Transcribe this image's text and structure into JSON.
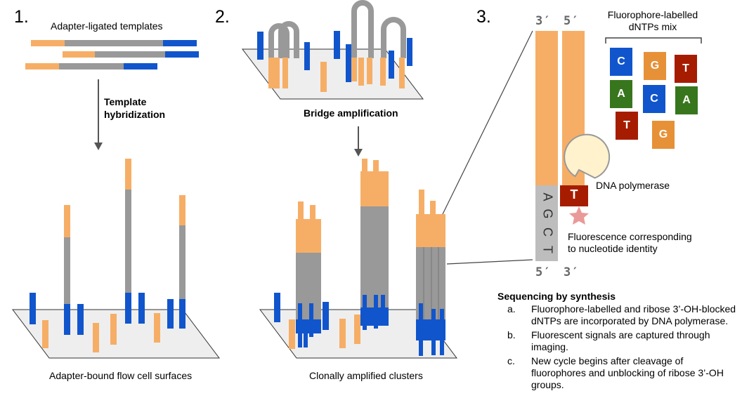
{
  "step_numbers": [
    "1.",
    "2.",
    "3."
  ],
  "panel1": {
    "templates_label": "Adapter-ligated templates",
    "arrow_label_line1": "Template",
    "arrow_label_line2": "hybridization",
    "surface_label": "Adapter-bound flow cell surfaces"
  },
  "panel2": {
    "bridge_label": "Bridge amplification",
    "clusters_label": "Clonally amplified clusters"
  },
  "panel3": {
    "strand_top_left": "3′",
    "strand_top_right": "5′",
    "strand_bottom_left": "5′",
    "strand_bottom_right": "3′",
    "template_bases": [
      "A",
      "G",
      "C",
      "T"
    ],
    "incoming_base": "T",
    "dntps_title_line1": "Fluorophore-labelled",
    "dntps_title_line2": "dNTPs mix",
    "dntps": [
      "C",
      "G",
      "T",
      "A",
      "C",
      "A",
      "T",
      "G"
    ],
    "polymerase_label": "DNA polymerase",
    "fluorescence_line1": "Fluorescence corresponding",
    "fluorescence_line2": "to nucleotide identity",
    "sbs_title": "Sequencing by synthesis",
    "sbs_steps": [
      {
        "marker": "a.",
        "text": "Fluorophore-labelled and ribose 3’-OH-blocked dNTPs are incorporated by DNA polymerase."
      },
      {
        "marker": "b.",
        "text": "Fluorescent signals are captured through imaging."
      },
      {
        "marker": "c.",
        "text": "New cycle begins after cleavage of fluorophores and unblocking of ribose 3’-OH groups."
      }
    ]
  },
  "colors": {
    "orange": "#f6ae66",
    "blue": "#1155cc",
    "gray": "#999999",
    "flowcell": "#eeeeee",
    "base_C": "#1155cc",
    "base_G": "#e69138",
    "base_T": "#a61c00",
    "base_A": "#38761d",
    "polymerase": "#fff2cc",
    "star": "#ea9999"
  }
}
